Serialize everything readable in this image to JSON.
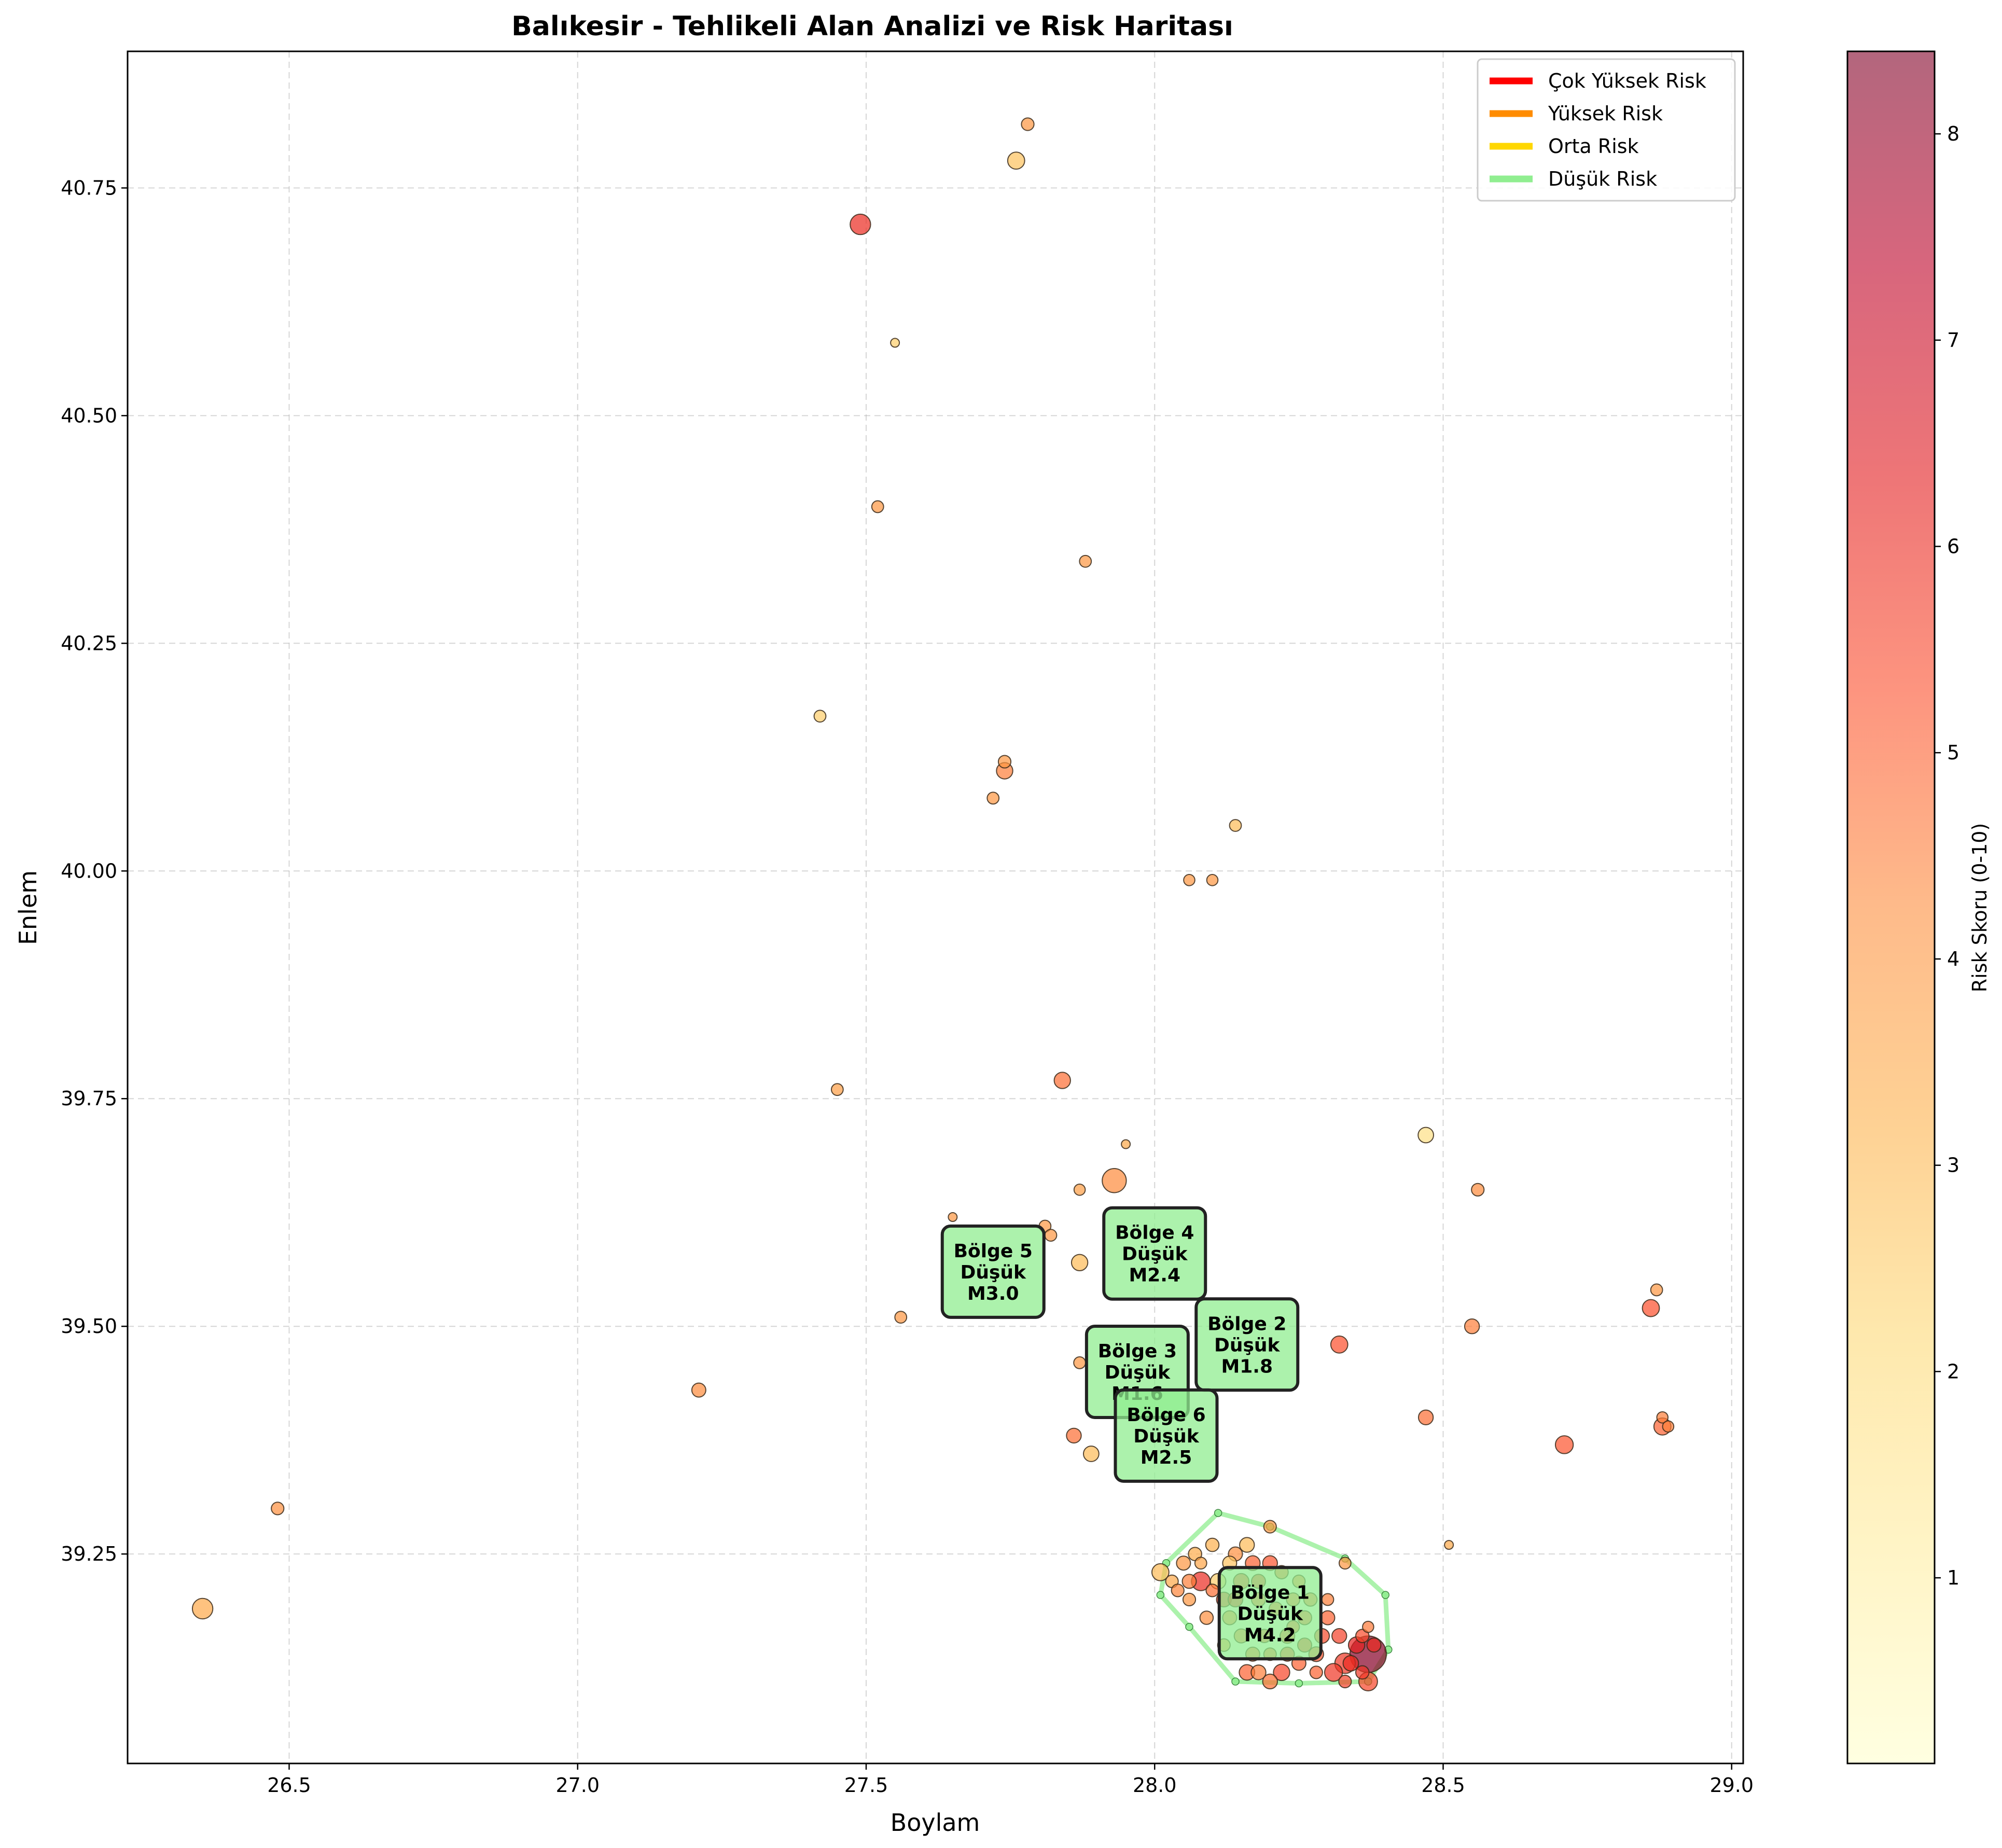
{
  "chart_data": {
    "type": "scatter",
    "title": "Balıkesir - Tehlikeli Alan Analizi ve Risk Haritası",
    "xlabel": "Boylam",
    "ylabel": "Enlem",
    "xlim": [
      26.22,
      29.02
    ],
    "ylim": [
      39.02,
      40.9
    ],
    "xticks": [
      "26.5",
      "27.0",
      "27.5",
      "28.0",
      "28.5",
      "29.0"
    ],
    "yticks": [
      "39.25",
      "39.50",
      "39.75",
      "40.00",
      "40.25",
      "40.50",
      "40.75"
    ],
    "grid": true,
    "legend": {
      "placement": "top-right",
      "entries": [
        {
          "label": "Çok Yüksek Risk",
          "color": "#ff0000"
        },
        {
          "label": "Yüksek Risk",
          "color": "#ff8c00"
        },
        {
          "label": "Orta Risk",
          "color": "#ffd700"
        },
        {
          "label": "Düşük Risk",
          "color": "#90ee90"
        }
      ]
    },
    "colorbar": {
      "label": "Risk Skoru (0-10)",
      "range": [
        0.1,
        8.4
      ],
      "ticks": [
        "1",
        "2",
        "3",
        "4",
        "5",
        "6",
        "7",
        "8"
      ],
      "colormap": "YlOrRd",
      "alpha": 0.6
    },
    "points": [
      {
        "x": 26.35,
        "y": 39.19,
        "r": 3.5,
        "m": 2.6
      },
      {
        "x": 26.48,
        "y": 39.3,
        "r": 4.2,
        "m": 1.6
      },
      {
        "x": 27.21,
        "y": 39.43,
        "r": 4.3,
        "m": 1.8
      },
      {
        "x": 27.42,
        "y": 40.17,
        "r": 2.5,
        "m": 1.5
      },
      {
        "x": 27.45,
        "y": 39.76,
        "r": 3.8,
        "m": 1.5
      },
      {
        "x": 27.49,
        "y": 40.71,
        "r": 6.0,
        "m": 2.6
      },
      {
        "x": 27.52,
        "y": 40.4,
        "r": 4.0,
        "m": 1.5
      },
      {
        "x": 27.55,
        "y": 40.58,
        "r": 2.5,
        "m": 1.0
      },
      {
        "x": 27.56,
        "y": 39.51,
        "r": 4.0,
        "m": 1.5
      },
      {
        "x": 27.65,
        "y": 39.62,
        "r": 4.0,
        "m": 1.0
      },
      {
        "x": 27.72,
        "y": 40.08,
        "r": 4.0,
        "m": 1.5
      },
      {
        "x": 27.74,
        "y": 40.12,
        "r": 4.0,
        "m": 1.6
      },
      {
        "x": 27.74,
        "y": 40.11,
        "r": 4.5,
        "m": 2.1
      },
      {
        "x": 27.76,
        "y": 40.78,
        "r": 2.8,
        "m": 2.2
      },
      {
        "x": 27.78,
        "y": 40.82,
        "r": 4.0,
        "m": 1.6
      },
      {
        "x": 27.81,
        "y": 39.61,
        "r": 4.0,
        "m": 1.5
      },
      {
        "x": 27.82,
        "y": 39.6,
        "r": 4.0,
        "m": 1.5
      },
      {
        "x": 27.84,
        "y": 39.77,
        "r": 4.8,
        "m": 2.1
      },
      {
        "x": 27.86,
        "y": 39.38,
        "r": 4.8,
        "m": 1.9
      },
      {
        "x": 27.87,
        "y": 39.65,
        "r": 3.8,
        "m": 1.4
      },
      {
        "x": 27.87,
        "y": 39.46,
        "r": 4.0,
        "m": 1.5
      },
      {
        "x": 27.87,
        "y": 39.57,
        "r": 3.0,
        "m": 2.1
      },
      {
        "x": 27.88,
        "y": 40.34,
        "r": 4.0,
        "m": 1.5
      },
      {
        "x": 27.89,
        "y": 39.36,
        "r": 3.0,
        "m": 2.0
      },
      {
        "x": 27.93,
        "y": 39.66,
        "r": 4.3,
        "m": 3.0
      },
      {
        "x": 27.95,
        "y": 39.7,
        "r": 3.5,
        "m": 1.0
      },
      {
        "x": 28.06,
        "y": 39.99,
        "r": 4.0,
        "m": 1.4
      },
      {
        "x": 28.1,
        "y": 39.99,
        "r": 4.0,
        "m": 1.4
      },
      {
        "x": 28.14,
        "y": 40.05,
        "r": 3.0,
        "m": 1.5
      },
      {
        "x": 28.32,
        "y": 39.48,
        "r": 5.3,
        "m": 2.2
      },
      {
        "x": 28.47,
        "y": 39.71,
        "r": 1.8,
        "m": 2.0
      },
      {
        "x": 28.47,
        "y": 39.4,
        "r": 4.8,
        "m": 1.9
      },
      {
        "x": 28.51,
        "y": 39.26,
        "r": 3.5,
        "m": 1.0
      },
      {
        "x": 28.55,
        "y": 39.5,
        "r": 4.5,
        "m": 1.9
      },
      {
        "x": 28.56,
        "y": 39.65,
        "r": 4.3,
        "m": 1.6
      },
      {
        "x": 28.71,
        "y": 39.37,
        "r": 5.2,
        "m": 2.3
      },
      {
        "x": 28.86,
        "y": 39.52,
        "r": 5.3,
        "m": 2.2
      },
      {
        "x": 28.87,
        "y": 39.54,
        "r": 4.0,
        "m": 1.5
      },
      {
        "x": 28.88,
        "y": 39.4,
        "r": 4.5,
        "m": 1.4
      },
      {
        "x": 28.88,
        "y": 39.39,
        "r": 5.0,
        "m": 2.2
      },
      {
        "x": 28.89,
        "y": 39.39,
        "r": 4.5,
        "m": 1.4
      },
      {
        "x": 28.37,
        "y": 39.14,
        "r": 8.3,
        "m": 4.2
      },
      {
        "x": 28.37,
        "y": 39.11,
        "r": 5.5,
        "m": 2.4
      },
      {
        "x": 28.33,
        "y": 39.13,
        "r": 5.8,
        "m": 2.6
      },
      {
        "x": 28.35,
        "y": 39.15,
        "r": 6.2,
        "m": 2.1
      },
      {
        "x": 28.31,
        "y": 39.12,
        "r": 5.8,
        "m": 2.3
      },
      {
        "x": 28.28,
        "y": 39.14,
        "r": 5.2,
        "m": 1.9
      },
      {
        "x": 28.25,
        "y": 39.13,
        "r": 5.0,
        "m": 1.8
      },
      {
        "x": 28.23,
        "y": 39.16,
        "r": 5.3,
        "m": 1.9
      },
      {
        "x": 28.27,
        "y": 39.2,
        "r": 4.8,
        "m": 1.7
      },
      {
        "x": 28.3,
        "y": 39.18,
        "r": 5.0,
        "m": 1.8
      },
      {
        "x": 28.22,
        "y": 39.12,
        "r": 5.5,
        "m": 2.1
      },
      {
        "x": 28.2,
        "y": 39.11,
        "r": 4.8,
        "m": 1.9
      },
      {
        "x": 28.16,
        "y": 39.12,
        "r": 5.0,
        "m": 2.0
      },
      {
        "x": 28.18,
        "y": 39.12,
        "r": 4.5,
        "m": 1.9
      },
      {
        "x": 28.2,
        "y": 39.28,
        "r": 4.0,
        "m": 1.6
      },
      {
        "x": 28.33,
        "y": 39.24,
        "r": 4.0,
        "m": 1.5
      },
      {
        "x": 28.15,
        "y": 39.22,
        "r": 5.6,
        "m": 2.0
      },
      {
        "x": 28.12,
        "y": 39.2,
        "r": 5.8,
        "m": 1.9
      },
      {
        "x": 28.08,
        "y": 39.22,
        "r": 6.0,
        "m": 2.4
      },
      {
        "x": 28.05,
        "y": 39.24,
        "r": 4.0,
        "m": 1.8
      },
      {
        "x": 28.1,
        "y": 39.26,
        "r": 3.3,
        "m": 1.7
      },
      {
        "x": 28.14,
        "y": 39.25,
        "r": 4.2,
        "m": 1.8
      },
      {
        "x": 28.17,
        "y": 39.24,
        "r": 5.0,
        "m": 1.9
      },
      {
        "x": 28.2,
        "y": 39.24,
        "r": 5.2,
        "m": 1.9
      },
      {
        "x": 28.03,
        "y": 39.22,
        "r": 3.5,
        "m": 1.6
      },
      {
        "x": 28.01,
        "y": 39.23,
        "r": 3.0,
        "m": 2.2
      },
      {
        "x": 28.06,
        "y": 39.2,
        "r": 4.0,
        "m": 1.6
      },
      {
        "x": 28.09,
        "y": 39.18,
        "r": 4.2,
        "m": 1.7
      },
      {
        "x": 28.13,
        "y": 39.18,
        "r": 4.6,
        "m": 1.8
      },
      {
        "x": 28.18,
        "y": 39.2,
        "r": 5.1,
        "m": 1.8
      },
      {
        "x": 28.21,
        "y": 39.19,
        "r": 5.0,
        "m": 1.7
      },
      {
        "x": 28.24,
        "y": 39.2,
        "r": 4.8,
        "m": 1.7
      },
      {
        "x": 28.26,
        "y": 39.18,
        "r": 5.2,
        "m": 1.8
      },
      {
        "x": 28.29,
        "y": 39.16,
        "r": 5.4,
        "m": 1.9
      },
      {
        "x": 28.32,
        "y": 39.16,
        "r": 5.6,
        "m": 1.9
      },
      {
        "x": 28.34,
        "y": 39.13,
        "r": 6.0,
        "m": 2.0
      },
      {
        "x": 28.36,
        "y": 39.16,
        "r": 5.4,
        "m": 1.7
      },
      {
        "x": 28.15,
        "y": 39.16,
        "r": 4.7,
        "m": 1.8
      },
      {
        "x": 28.17,
        "y": 39.14,
        "r": 4.9,
        "m": 1.8
      },
      {
        "x": 28.11,
        "y": 39.22,
        "r": 2.5,
        "m": 2.0
      },
      {
        "x": 28.13,
        "y": 39.24,
        "r": 2.8,
        "m": 1.8
      },
      {
        "x": 28.16,
        "y": 39.26,
        "r": 3.0,
        "m": 1.9
      },
      {
        "x": 28.07,
        "y": 39.25,
        "r": 3.4,
        "m": 1.7
      },
      {
        "x": 28.04,
        "y": 39.21,
        "r": 4.4,
        "m": 1.6
      },
      {
        "x": 28.12,
        "y": 39.15,
        "r": 4.0,
        "m": 1.6
      },
      {
        "x": 28.19,
        "y": 39.16,
        "r": 5.3,
        "m": 1.7
      },
      {
        "x": 28.23,
        "y": 39.14,
        "r": 5.5,
        "m": 1.8
      },
      {
        "x": 28.26,
        "y": 39.15,
        "r": 5.7,
        "m": 1.8
      },
      {
        "x": 28.28,
        "y": 39.12,
        "r": 5.0,
        "m": 1.6
      },
      {
        "x": 28.3,
        "y": 39.2,
        "r": 4.5,
        "m": 1.5
      },
      {
        "x": 28.25,
        "y": 39.22,
        "r": 4.6,
        "m": 1.6
      },
      {
        "x": 28.22,
        "y": 39.23,
        "r": 5.0,
        "m": 1.7
      },
      {
        "x": 28.18,
        "y": 39.22,
        "r": 5.7,
        "m": 1.8
      },
      {
        "x": 28.14,
        "y": 39.2,
        "r": 6.1,
        "m": 1.9
      },
      {
        "x": 28.1,
        "y": 39.21,
        "r": 4.8,
        "m": 1.6
      },
      {
        "x": 28.36,
        "y": 39.12,
        "r": 5.8,
        "m": 1.7
      },
      {
        "x": 28.33,
        "y": 39.11,
        "r": 5.6,
        "m": 1.6
      },
      {
        "x": 28.37,
        "y": 39.17,
        "r": 4.6,
        "m": 1.4
      },
      {
        "x": 28.38,
        "y": 39.15,
        "r": 6.0,
        "m": 1.8
      },
      {
        "x": 28.2,
        "y": 39.14,
        "r": 5.0,
        "m": 1.6
      },
      {
        "x": 28.24,
        "y": 39.17,
        "r": 5.2,
        "m": 1.6
      },
      {
        "x": 28.08,
        "y": 39.24,
        "r": 3.6,
        "m": 1.5
      },
      {
        "x": 28.06,
        "y": 39.22,
        "r": 4.5,
        "m": 1.8
      }
    ],
    "regions": [
      {
        "label": "Bölge 1",
        "risk": "Düşük",
        "mag": "M4.2",
        "x": 28.2,
        "y": 39.185,
        "hull": [
          [
            28.11,
            39.295
          ],
          [
            28.2,
            39.28
          ],
          [
            28.33,
            39.245
          ],
          [
            28.4,
            39.205
          ],
          [
            28.405,
            39.145
          ],
          [
            28.37,
            39.11
          ],
          [
            28.25,
            39.108
          ],
          [
            28.14,
            39.11
          ],
          [
            28.06,
            39.17
          ],
          [
            28.01,
            39.205
          ],
          [
            28.02,
            39.24
          ]
        ]
      },
      {
        "label": "Bölge 2",
        "risk": "Düşük",
        "mag": "M1.8",
        "x": 28.16,
        "y": 39.48
      },
      {
        "label": "Bölge 3",
        "risk": "Düşük",
        "mag": "M1.6",
        "x": 27.97,
        "y": 39.45
      },
      {
        "label": "Bölge 4",
        "risk": "Düşük",
        "mag": "M2.4",
        "x": 28.0,
        "y": 39.58
      },
      {
        "label": "Bölge 5",
        "risk": "Düşük",
        "mag": "M3.0",
        "x": 27.72,
        "y": 39.56
      },
      {
        "label": "Bölge 6",
        "risk": "Düşük",
        "mag": "M2.5",
        "x": 28.02,
        "y": 39.38
      }
    ]
  }
}
